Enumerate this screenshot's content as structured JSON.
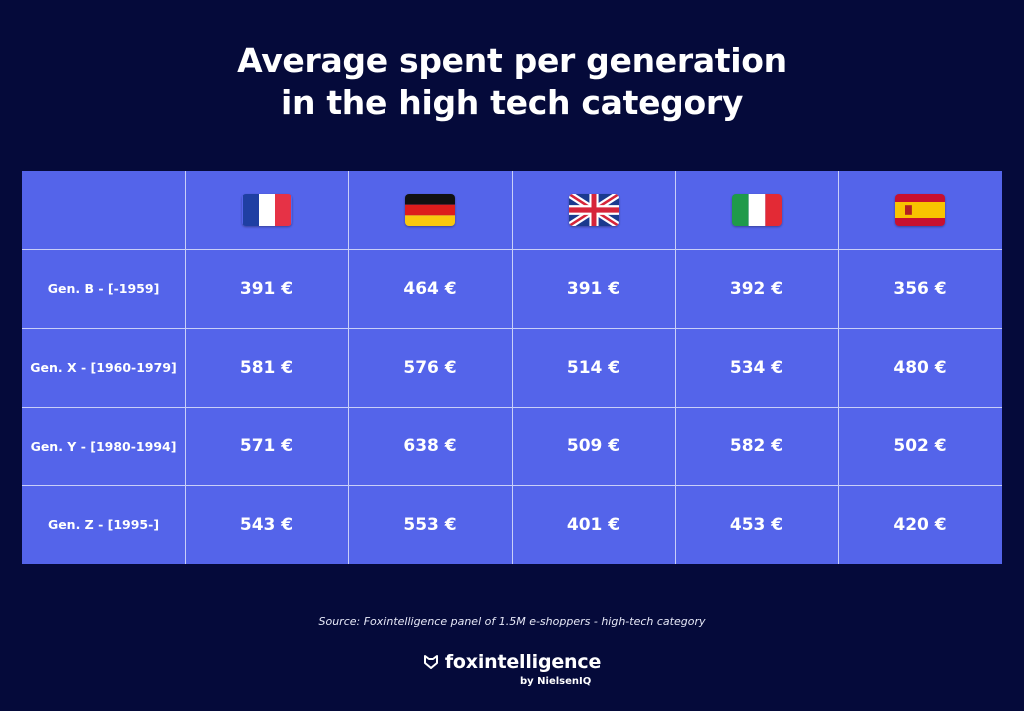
{
  "title_line1": "Average spent per generation",
  "title_line2": "in the high tech category",
  "chart_data": {
    "type": "table",
    "title": "Average spent per generation in the high tech category",
    "columns": [
      {
        "country": "France",
        "icon": "france-flag-icon"
      },
      {
        "country": "Germany",
        "icon": "germany-flag-icon"
      },
      {
        "country": "United Kingdom",
        "icon": "uk-flag-icon"
      },
      {
        "country": "Italy",
        "icon": "italy-flag-icon"
      },
      {
        "country": "Spain",
        "icon": "spain-flag-icon"
      }
    ],
    "rows": [
      {
        "label": "Gen. B - [-1959]",
        "values": [
          "391 €",
          "464 €",
          "391 €",
          "392 €",
          "356 €"
        ]
      },
      {
        "label": "Gen. X - [1960-1979]",
        "values": [
          "581 €",
          "576 €",
          "514 €",
          "534 €",
          "480 €"
        ]
      },
      {
        "label": "Gen. Y - [1980-1994]",
        "values": [
          "571 €",
          "638 €",
          "509 €",
          "582 €",
          "502 €"
        ]
      },
      {
        "label": "Gen. Z - [1995-]",
        "values": [
          "543 €",
          "553 €",
          "401 €",
          "453 €",
          "420 €"
        ]
      }
    ]
  },
  "source": "Source: Foxintelligence panel of 1.5M e-shoppers - high-tech category",
  "brand": {
    "name": "foxintelligence",
    "sub": "by NielsenIQ",
    "icon": "fox-logo-icon"
  },
  "colors": {
    "background": "#050a3a",
    "table": "#5464ea",
    "gridline": "#c9cff8"
  }
}
